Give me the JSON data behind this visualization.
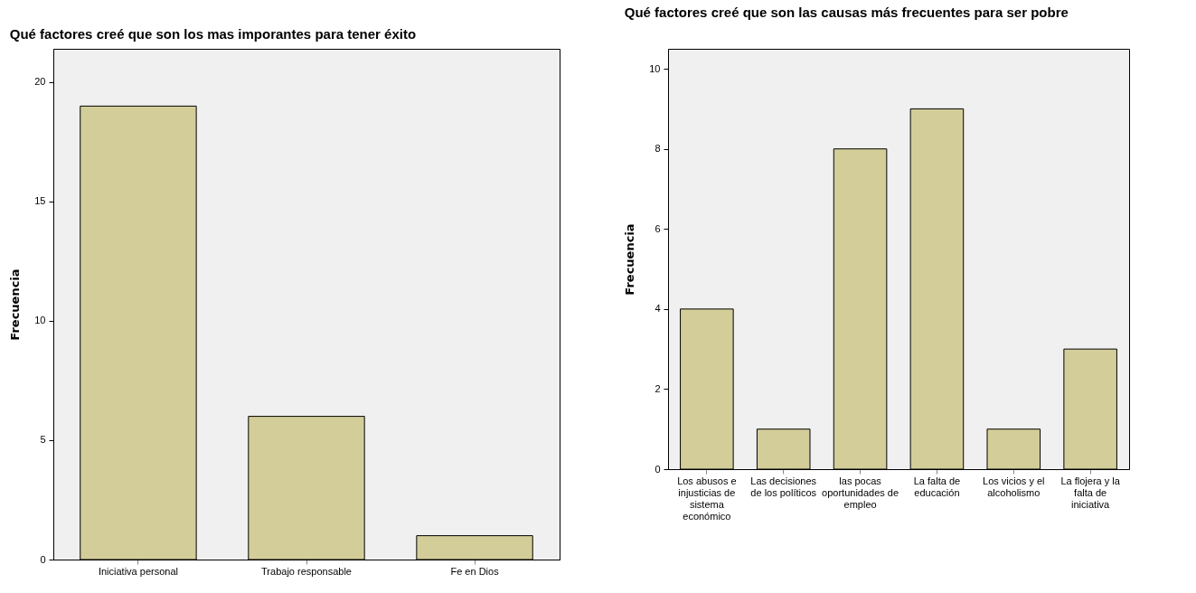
{
  "chart_data": [
    {
      "type": "bar",
      "title": "Qué factores creé que son los mas imporantes para tener éxito",
      "ylabel": "Frecuencia",
      "categories": [
        "Iniciativa personal",
        "Trabajo responsable",
        "Fe en Dios"
      ],
      "values": [
        19,
        6,
        1
      ],
      "color": "#d3ce99",
      "ylim": [
        0,
        21.4
      ],
      "yticks": [
        0,
        5,
        10,
        15,
        20
      ],
      "grid": false
    },
    {
      "type": "bar",
      "title": "Qué factores creé que son las causas más frecuentes para ser pobre",
      "ylabel": "Frecuencia",
      "categories": [
        "Los abusos e injusticias de sistema económico",
        "Las decisiones de los políticos",
        "las pocas oportunidades de empleo",
        "La falta de educación",
        "Los vicios y el alcoholismo",
        "La flojera y la falta de iniciativa"
      ],
      "values": [
        4,
        1,
        8,
        9,
        1,
        3
      ],
      "color": "#d3ce99",
      "ylim": [
        0,
        10.5
      ],
      "yticks": [
        0,
        2,
        4,
        6,
        8,
        10
      ],
      "grid": false
    }
  ]
}
